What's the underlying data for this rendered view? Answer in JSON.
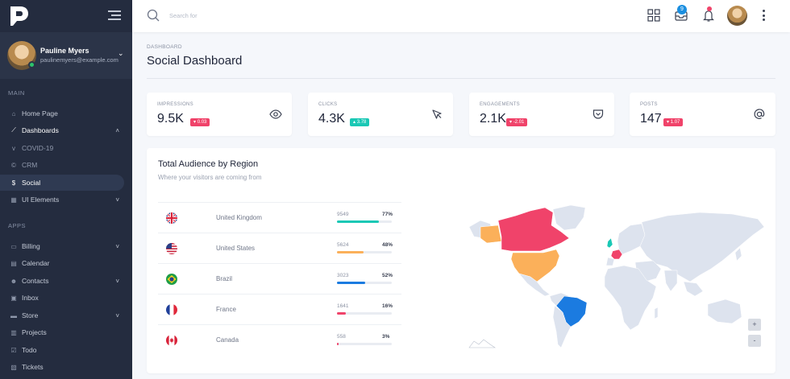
{
  "sidebar": {
    "user": {
      "name": "Pauline Myers",
      "email": "paulinemyers@example.com"
    },
    "sections": {
      "main": "MAIN",
      "apps": "APPS"
    },
    "items": [
      {
        "label": "Home Page",
        "icon": "home-icon"
      },
      {
        "label": "Dashboards",
        "icon": "chart-line-icon"
      },
      {
        "label": "COVID-19",
        "icon": "virus-icon"
      },
      {
        "label": "CRM",
        "icon": "copyright-icon"
      },
      {
        "label": "Social",
        "icon": "dollar-icon"
      },
      {
        "label": "UI Elements",
        "icon": "grid-icon"
      },
      {
        "label": "Billing",
        "icon": "wallet-icon"
      },
      {
        "label": "Calendar",
        "icon": "calendar-icon"
      },
      {
        "label": "Contacts",
        "icon": "users-icon"
      },
      {
        "label": "Inbox",
        "icon": "inbox-icon"
      },
      {
        "label": "Store",
        "icon": "store-icon"
      },
      {
        "label": "Projects",
        "icon": "briefcase-icon"
      },
      {
        "label": "Todo",
        "icon": "checkbox-icon"
      },
      {
        "label": "Tickets",
        "icon": "ticket-icon"
      }
    ]
  },
  "topbar": {
    "search_placeholder": "Search for",
    "inbox_count": "9"
  },
  "header": {
    "breadcrumb": "DASHBOARD",
    "title": "Social Dashboard"
  },
  "stats": [
    {
      "label": "IMPRESSIONS",
      "value": "9.5K",
      "change": "0.03",
      "trend": "down",
      "icon": "eye-icon"
    },
    {
      "label": "CLICKS",
      "value": "4.3K",
      "change": "3.78",
      "trend": "up",
      "icon": "cursor-icon"
    },
    {
      "label": "ENGAGEMENTS",
      "value": "2.1K",
      "change": "-2.01",
      "trend": "down",
      "icon": "pocket-icon"
    },
    {
      "label": "POSTS",
      "value": "147",
      "change": "1.07",
      "trend": "down",
      "icon": "at-icon"
    }
  ],
  "audience": {
    "title": "Total Audience by Region",
    "subtitle": "Where your visitors are coming from",
    "regions": [
      {
        "country": "United Kingdom",
        "count": "9549",
        "percent": "77%",
        "fraction": 0.77,
        "color": "#1ac8b5",
        "flag": "uk-flag-icon"
      },
      {
        "country": "United States",
        "count": "5624",
        "percent": "48%",
        "fraction": 0.48,
        "color": "#fbb05a",
        "flag": "us-flag-icon"
      },
      {
        "country": "Brazil",
        "count": "3023",
        "percent": "52%",
        "fraction": 0.52,
        "color": "#1b7be0",
        "flag": "brazil-flag-icon"
      },
      {
        "country": "France",
        "count": "1641",
        "percent": "16%",
        "fraction": 0.16,
        "color": "#f0436a",
        "flag": "france-flag-icon"
      },
      {
        "country": "Canada",
        "count": "558",
        "percent": "3%",
        "fraction": 0.03,
        "color": "#f0436a",
        "flag": "canada-flag-icon"
      }
    ],
    "map_zoom_in": "+",
    "map_zoom_out": "-"
  },
  "colors": {
    "sidebar_bg": "#242c3f",
    "danger": "#f0436a",
    "success": "#1ac8b5",
    "primary": "#1b8fe0",
    "map_land": "#dde3ee"
  }
}
